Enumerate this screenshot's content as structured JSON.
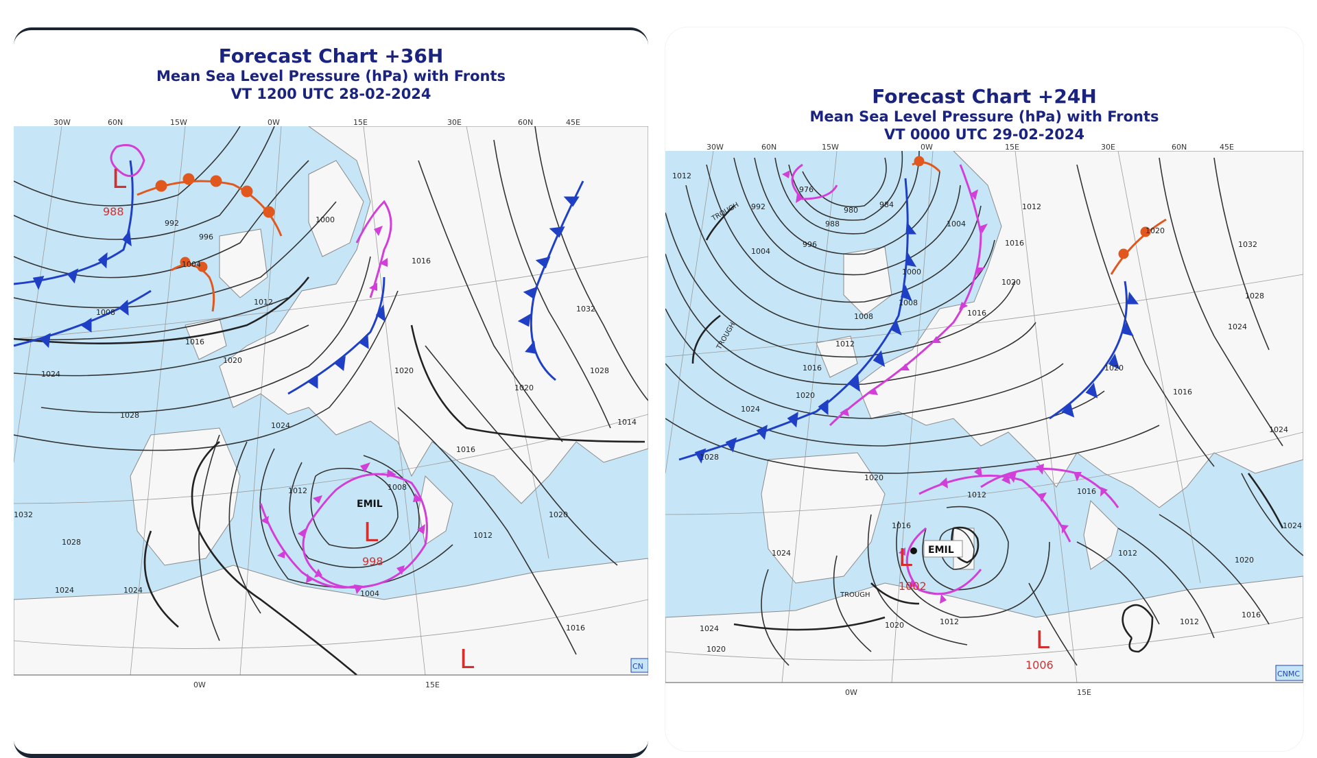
{
  "charts": [
    {
      "title": "Forecast Chart +36H",
      "subtitle": "Mean Sea Level Pressure (hPa) with Fronts",
      "valid_time": "VT 1200 UTC 28-02-2024",
      "top_ticks": [
        "30W",
        "60N",
        "15W",
        "0W",
        "15E",
        "30E",
        "60N",
        "45E"
      ],
      "bottom_ticks": [
        "0W",
        "15E"
      ],
      "storm_name": "EMIL",
      "lows": [
        {
          "symbol": "L",
          "pressure": "988"
        },
        {
          "symbol": "L",
          "pressure": "998"
        },
        {
          "symbol": "L",
          "pressure": ""
        }
      ],
      "isobar_labels": [
        "992",
        "996",
        "1000",
        "1004",
        "1008",
        "1012",
        "1016",
        "1020",
        "1024",
        "1028",
        "1032"
      ],
      "label_texts": {
        "l992": "992",
        "l996": "996",
        "l1000": "1000",
        "l1004a": "1004",
        "l1008": "1008",
        "l1012a": "1012",
        "l1016a": "1016",
        "l1020a": "1020",
        "l1024a": "1024",
        "l1028a": "1028",
        "l1032": "1032",
        "l1016b": "1016",
        "l1020b": "1020",
        "l1024b": "1024",
        "l1012b": "1012",
        "l1008b": "1008",
        "l1004b": "1004",
        "l1016c": "1016",
        "l1020c": "1020",
        "l1024c": "1024",
        "l1028b": "1028",
        "l1032b": "1032",
        "l1016d": "1016",
        "l1028c": "1028",
        "l1020d": "1020",
        "l1012c": "1012",
        "l1014": "1014",
        "l1024d": "1024"
      },
      "logo": "CN"
    },
    {
      "title": "Forecast Chart +24H",
      "subtitle": "Mean Sea Level Pressure (hPa) with Fronts",
      "valid_time": "VT 0000 UTC 29-02-2024",
      "top_ticks": [
        "30W",
        "60N",
        "15W",
        "0W",
        "15E",
        "30E",
        "60N",
        "45E"
      ],
      "bottom_ticks": [
        "0W",
        "15E"
      ],
      "storm_name": "EMIL",
      "lows": [
        {
          "symbol": "L",
          "pressure": "1002"
        },
        {
          "symbol": "L",
          "pressure": "1006"
        }
      ],
      "trough_label": "TROUGH",
      "label_texts": {
        "l1012": "1012",
        "l992": "992",
        "l988": "988",
        "l984": "984",
        "l980": "980",
        "l976": "976",
        "l996": "996",
        "l1000": "1000",
        "l1004": "1004",
        "l1008": "1008",
        "l1012b": "1012",
        "l1016": "1016",
        "l1020": "1020",
        "l1024": "1024",
        "l1028": "1028",
        "l1016b": "1016",
        "l1020b": "1020",
        "l1012c": "1012",
        "l1020c": "1020",
        "l1024c": "1024",
        "l1028b": "1028",
        "l1032": "1032",
        "l1020d": "1020",
        "l1024d": "1024",
        "l1016c": "1016",
        "l1012d": "1012",
        "l1016d": "1016",
        "l1020e": "1020",
        "l1024e": "1024",
        "l1020f": "1020",
        "l1012e": "1012",
        "l1016e": "1016",
        "l1020g": "1020",
        "l1012f": "1012",
        "l1016f": "1016",
        "l1024f": "1024",
        "l1004b": "1004",
        "l1008b": "1008",
        "l1012g": "1012",
        "l1016g": "1016",
        "l1020h": "1020",
        "l1024g": "1024"
      },
      "logo": "CNMC"
    }
  ],
  "colors": {
    "title": "#1a237e",
    "sea": "#c6e6f7",
    "land": "#f7f7f7",
    "isobar": "#333333",
    "cold_front": "#1f3fc4",
    "warm_front": "#e0581e",
    "occluded_front": "#d23ed8",
    "low_symbol": "#d32f2f"
  }
}
